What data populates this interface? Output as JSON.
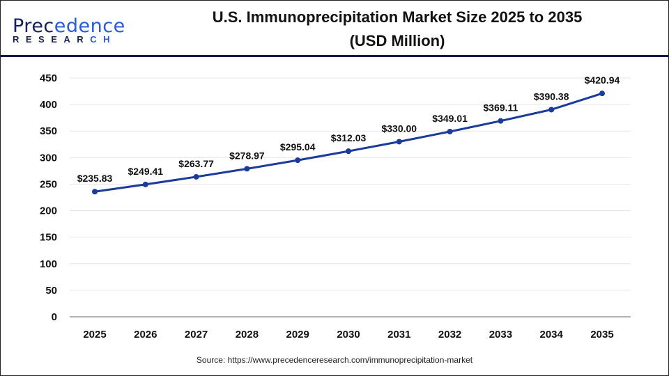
{
  "logo": {
    "text": "Precedence",
    "sub": "RESEARCH"
  },
  "chart_data": {
    "type": "line",
    "title": "U.S. Immunoprecipitation Market Size 2025 to 2035 (USD Million)",
    "title_lines": [
      "U.S. Immunoprecipitation Market Size 2025 to 2035",
      "(USD Million)"
    ],
    "categories": [
      "2025",
      "2026",
      "2027",
      "2028",
      "2029",
      "2030",
      "2031",
      "2032",
      "2033",
      "2034",
      "2035"
    ],
    "values": [
      235.83,
      249.41,
      263.77,
      278.97,
      295.04,
      312.03,
      330.0,
      349.01,
      369.11,
      390.38,
      420.94
    ],
    "data_labels": [
      "$235.83",
      "$249.41",
      "$263.77",
      "$278.97",
      "$295.04",
      "$312.03",
      "$330.00",
      "$349.01",
      "$369.11",
      "$390.38",
      "$420.94"
    ],
    "ylim": [
      0,
      450
    ],
    "yticks": [
      0,
      50,
      100,
      150,
      200,
      250,
      300,
      350,
      400,
      450
    ],
    "grid": true,
    "line_color": "#1a3a9c",
    "xlabel": "",
    "ylabel": ""
  },
  "source": "Source: https://www.precedenceresearch.com/immunoprecipitation-market"
}
